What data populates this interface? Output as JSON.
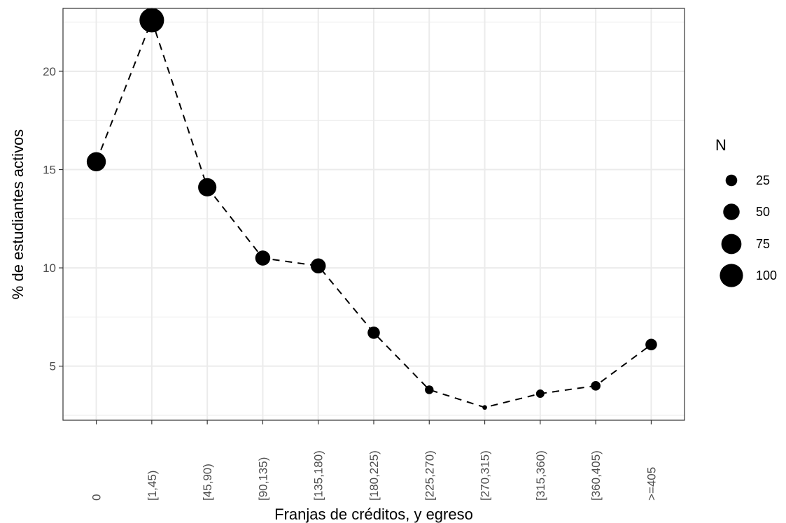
{
  "chart_data": {
    "type": "scatter",
    "connect_points": true,
    "line_style": "dashed",
    "categories": [
      "0",
      "[1,45)",
      "[45,90)",
      "[90,135)",
      "[135,180)",
      "[180,225)",
      "[225,270)",
      "[270,315)",
      "[315,360)",
      "[360,405)",
      ">=405"
    ],
    "values": [
      15.4,
      22.6,
      14.1,
      10.5,
      10.1,
      6.7,
      3.8,
      2.9,
      3.6,
      4.0,
      6.1
    ],
    "sizes_n": [
      68,
      112,
      62,
      42,
      42,
      28,
      14,
      4,
      13,
      17,
      25
    ],
    "xlabel": "Franjas de créditos, y egreso",
    "ylabel": "% de estudiantes activos",
    "ylim": [
      2.25,
      23.2
    ],
    "yticks": [
      5,
      10,
      15,
      20
    ],
    "grid": true,
    "legend": {
      "title": "N",
      "placement": "right",
      "entries": [
        {
          "label": "25",
          "value": 25
        },
        {
          "label": "50",
          "value": 50
        },
        {
          "label": "75",
          "value": 75
        },
        {
          "label": "100",
          "value": 100
        }
      ]
    },
    "colors": {
      "points": "#000000",
      "grid": "#ebebeb",
      "panel_border": "#333333",
      "tick_text": "#4d4d4d"
    }
  }
}
